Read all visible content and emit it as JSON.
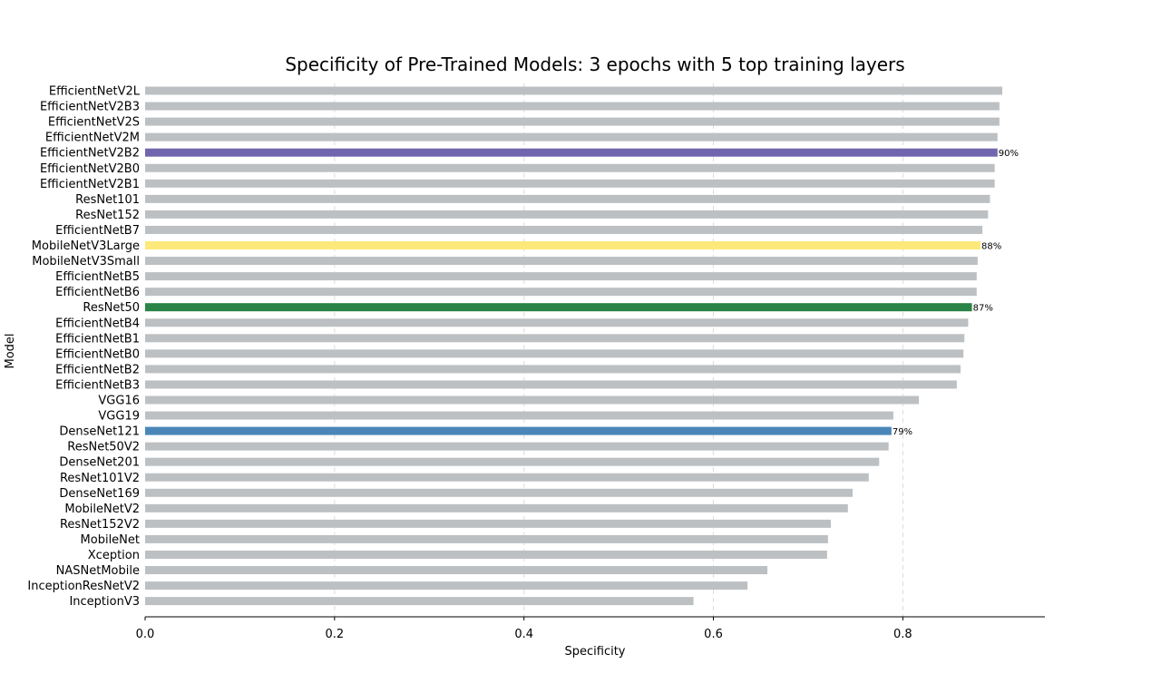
{
  "chart_data": {
    "type": "bar",
    "orientation": "horizontal",
    "title": "Specificity of Pre-Trained Models: 3 epochs with 5 top training layers",
    "xlabel": "Specificity",
    "ylabel": "Model",
    "xlim": [
      0,
      0.95
    ],
    "xticks": [
      "0.0",
      "0.2",
      "0.4",
      "0.6",
      "0.8"
    ],
    "grid": "vertical dashed",
    "categories": [
      "EfficientNetV2L",
      "EfficientNetV2B3",
      "EfficientNetV2S",
      "EfficientNetV2M",
      "EfficientNetV2B2",
      "EfficientNetV2B0",
      "EfficientNetV2B1",
      "ResNet101",
      "ResNet152",
      "EfficientNetB7",
      "MobileNetV3Large",
      "MobileNetV3Small",
      "EfficientNetB5",
      "EfficientNetB6",
      "ResNet50",
      "EfficientNetB4",
      "EfficientNetB1",
      "EfficientNetB0",
      "EfficientNetB2",
      "EfficientNetB3",
      "VGG16",
      "VGG19",
      "DenseNet121",
      "ResNet50V2",
      "DenseNet201",
      "ResNet101V2",
      "DenseNet169",
      "MobileNetV2",
      "ResNet152V2",
      "MobileNet",
      "Xception",
      "NASNetMobile",
      "InceptionResNetV2",
      "InceptionV3"
    ],
    "values": [
      0.905,
      0.902,
      0.902,
      0.9,
      0.9,
      0.897,
      0.897,
      0.892,
      0.89,
      0.884,
      0.882,
      0.879,
      0.878,
      0.878,
      0.873,
      0.869,
      0.865,
      0.864,
      0.861,
      0.857,
      0.817,
      0.79,
      0.788,
      0.785,
      0.775,
      0.764,
      0.747,
      0.742,
      0.724,
      0.721,
      0.72,
      0.657,
      0.636,
      0.579
    ],
    "colors": [
      "#bdc0c3",
      "#bdc0c3",
      "#bdc0c3",
      "#bdc0c3",
      "#7166ad",
      "#bdc0c3",
      "#bdc0c3",
      "#bdc0c3",
      "#bdc0c3",
      "#bdc0c3",
      "#fde97a",
      "#bdc0c3",
      "#bdc0c3",
      "#bdc0c3",
      "#2a8447",
      "#bdc0c3",
      "#bdc0c3",
      "#bdc0c3",
      "#bdc0c3",
      "#bdc0c3",
      "#bdc0c3",
      "#bdc0c3",
      "#4a87b8",
      "#bdc0c3",
      "#bdc0c3",
      "#bdc0c3",
      "#bdc0c3",
      "#bdc0c3",
      "#bdc0c3",
      "#bdc0c3",
      "#bdc0c3",
      "#bdc0c3",
      "#bdc0c3",
      "#bdc0c3"
    ],
    "data_labels": [
      "",
      "",
      "",
      "",
      "90%",
      "",
      "",
      "",
      "",
      "",
      "88%",
      "",
      "",
      "",
      "87%",
      "",
      "",
      "",
      "",
      "",
      "",
      "",
      "79%",
      "",
      "",
      "",
      "",
      "",
      "",
      "",
      "",
      "",
      "",
      ""
    ]
  }
}
